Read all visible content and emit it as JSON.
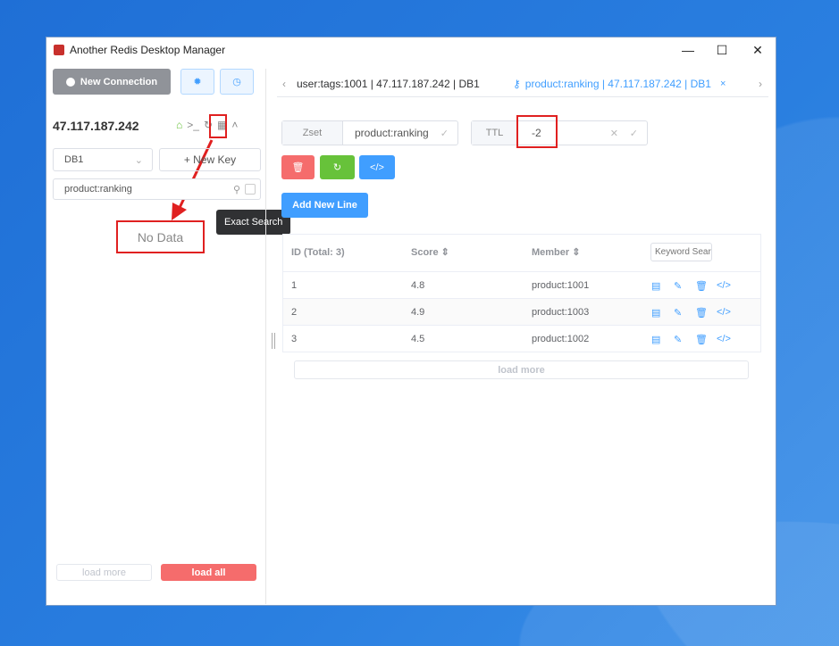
{
  "window": {
    "title": "Another Redis Desktop Manager",
    "minimize": "—",
    "maximize": "☐",
    "close": "✕"
  },
  "sidebar": {
    "new_connection": "New Connection",
    "connection_name": "47.117.187.242",
    "db_select": "DB1",
    "new_key": "+ New Key",
    "search_value": "product:ranking",
    "tooltip": "Exact Search",
    "empty": "No Data",
    "load_more": "load more",
    "load_all": "load all"
  },
  "tabs": [
    {
      "label": "user:tags:1001 | 47.117.187.242 | DB1",
      "active": false
    },
    {
      "label": "product:ranking | 47.117.187.242 | DB1",
      "active": true
    }
  ],
  "key": {
    "type": "Zset",
    "name": "product:ranking",
    "ttl_label": "TTL",
    "ttl": "-2"
  },
  "add_new_line": "Add New Line",
  "table": {
    "headers": [
      "ID (Total: 3)",
      "Score",
      "Member"
    ],
    "keyword_placeholder": "Keyword Search",
    "rows": [
      {
        "id": "1",
        "score": "4.8",
        "member": "product:1001"
      },
      {
        "id": "2",
        "score": "4.9",
        "member": "product:1003"
      },
      {
        "id": "3",
        "score": "4.5",
        "member": "product:1002"
      }
    ],
    "load_more": "load more"
  },
  "colors": {
    "primary": "#409eff",
    "danger": "#f56c6c",
    "success": "#67c23a",
    "annotation": "#e02020"
  }
}
